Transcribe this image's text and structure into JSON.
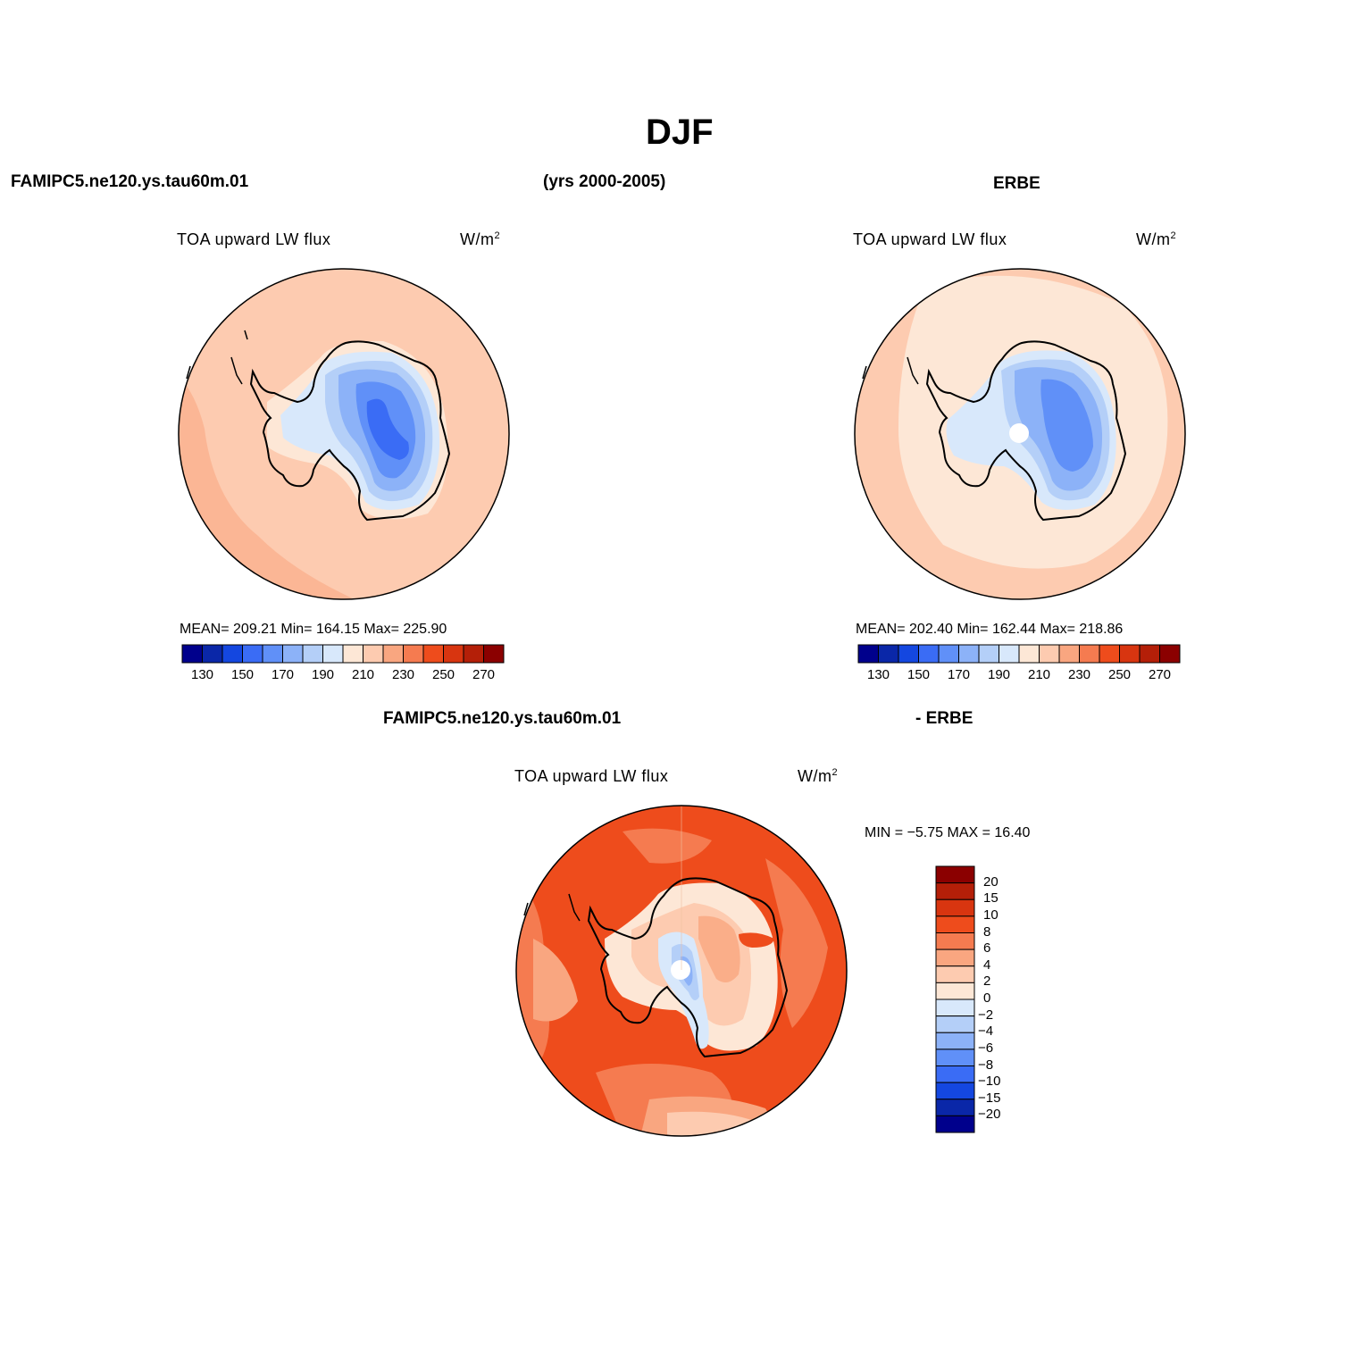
{
  "title": "DJF",
  "top_left_header": "FAMIPC5.ne120.ys.tau60m.01",
  "top_center_header": "(yrs 2000-2005)",
  "top_right_header": "ERBE",
  "panels": [
    {
      "variable": "TOA upward LW flux",
      "units": "W/m",
      "units_exp": "2",
      "stats": "MEAN= 209.21   Min= 164.15   Max= 225.90",
      "colorbar": {
        "colors": [
          "#00008c",
          "#0a27a8",
          "#1447e0",
          "#3a6cf5",
          "#6090f8",
          "#8cb2f8",
          "#b4cff8",
          "#d8e8fb",
          "#fde7d6",
          "#fdcbb0",
          "#f9a680",
          "#f57b50",
          "#ee4c1c",
          "#d83510",
          "#b41f08",
          "#8b0000"
        ],
        "ticks": [
          "130",
          "150",
          "170",
          "190",
          "210",
          "230",
          "250",
          "270"
        ]
      }
    },
    {
      "variable": "TOA upward LW flux",
      "units": "W/m",
      "units_exp": "2",
      "stats": "MEAN= 202.40   Min= 162.44   Max= 218.86",
      "colorbar": {
        "colors": [
          "#00008c",
          "#0a27a8",
          "#1447e0",
          "#3a6cf5",
          "#6090f8",
          "#8cb2f8",
          "#b4cff8",
          "#d8e8fb",
          "#fde7d6",
          "#fdcbb0",
          "#f9a680",
          "#f57b50",
          "#ee4c1c",
          "#d83510",
          "#b41f08",
          "#8b0000"
        ],
        "ticks": [
          "130",
          "150",
          "170",
          "190",
          "210",
          "230",
          "250",
          "270"
        ]
      }
    }
  ],
  "diff_header_left": "FAMIPC5.ne120.ys.tau60m.01",
  "diff_header_right": "- ERBE",
  "diff_panel": {
    "variable": "TOA upward LW flux",
    "units": "W/m",
    "units_exp": "2",
    "stats": "MIN =   −5.75  MAX =    16.40",
    "colorbar": {
      "colors": [
        "#8b0000",
        "#b41f08",
        "#d83510",
        "#ee4c1c",
        "#f57b50",
        "#f9a680",
        "#fdcbb0",
        "#fde7d6",
        "#d8e8fb",
        "#b4cff8",
        "#8cb2f8",
        "#6090f8",
        "#3a6cf5",
        "#1447e0",
        "#0a27a8",
        "#00008c"
      ],
      "labels": [
        "20",
        "15",
        "10",
        "8",
        "6",
        "4",
        "2",
        "0",
        "−2",
        "−4",
        "−6",
        "−8",
        "−10",
        "−15",
        "−20"
      ]
    }
  },
  "map_colors": {
    "ocean_model": "#fdcbb0",
    "ocean_obs": "#fde7d6",
    "ice_light": "#d8e8fb",
    "ice_mid": "#b4cff8",
    "ice_dark": "#8cb2f8",
    "ice_core": "#6090f8",
    "ice_deep": "#3a6cf5",
    "diff_high": "#ee4c1c",
    "diff_mid": "#f57b50",
    "diff_low": "#f9a680"
  }
}
